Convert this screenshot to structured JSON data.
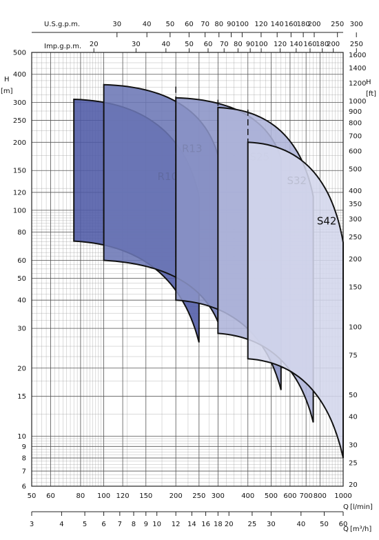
{
  "chart_data": {
    "type": "area",
    "scale": "log-log",
    "grid": true,
    "axes": {
      "left": {
        "label": "H",
        "unit": "[m]",
        "range": [
          6,
          500
        ],
        "ticks": [
          "500",
          "400",
          "300",
          "250",
          "200",
          "150",
          "120",
          "100",
          "80",
          "60",
          "50",
          "40",
          "30",
          "20",
          "15",
          "10",
          "9",
          "8",
          "7",
          "6"
        ]
      },
      "right": {
        "label": "H",
        "unit": "[ft]",
        "range": [
          20,
          1600
        ],
        "ticks": [
          "1600",
          "1400",
          "1200",
          "1000",
          "900",
          "800",
          "700",
          "600",
          "500",
          "400",
          "350",
          "300",
          "250",
          "200",
          "150",
          "100",
          "75",
          "50",
          "40",
          "30",
          "25",
          "20"
        ]
      },
      "bottom_primary": {
        "label": "Q",
        "unit": "[l/min]",
        "range": [
          50,
          1000
        ],
        "ticks": [
          "50",
          "60",
          "80",
          "100",
          "120",
          "150",
          "200",
          "250",
          "300",
          "400",
          "500",
          "600",
          "700",
          "800",
          "1000"
        ]
      },
      "bottom_secondary": {
        "label": "Q",
        "unit": "[m³/h]",
        "range": [
          3,
          60
        ],
        "ticks": [
          "3",
          "4",
          "5",
          "6",
          "7",
          "8",
          "9",
          "10",
          "12",
          "14",
          "16",
          "18",
          "20",
          "25",
          "30",
          "40",
          "50",
          "60"
        ]
      },
      "top_primary": {
        "label": "U.S.g.p.m.",
        "ticks": [
          "30",
          "40",
          "50",
          "60",
          "70",
          "80",
          "90",
          "100",
          "120",
          "140",
          "160",
          "180",
          "200",
          "250",
          "300"
        ]
      },
      "top_secondary": {
        "label": "Imp.g.p.m.",
        "ticks": [
          "20",
          "30",
          "40",
          "50",
          "60",
          "70",
          "80",
          "90",
          "100",
          "120",
          "140",
          "160",
          "180",
          "200",
          "250"
        ]
      }
    },
    "series": [
      {
        "name": "R10",
        "q_min": 75,
        "q_max": 250,
        "q_mid": 100,
        "h_top_start": 310,
        "h_top_end": 115,
        "h_bottom_start": 73,
        "h_bottom_end": 26,
        "color": "#4f5aa6"
      },
      {
        "name": "R13",
        "q_min": 100,
        "q_max": 300,
        "q_mid": 200,
        "h_top_start": 360,
        "h_top_end": 175,
        "h_bottom_start": 60,
        "h_bottom_end": 32,
        "color": "#6b76b5"
      },
      {
        "name": "S25",
        "q_min": 200,
        "q_max": 550,
        "q_mid": 300,
        "h_top_start": 315,
        "h_top_end": 170,
        "h_bottom_start": 40,
        "h_bottom_end": 16,
        "color": "#8a93c6"
      },
      {
        "name": "S32",
        "q_min": 300,
        "q_max": 750,
        "q_mid": 400,
        "h_top_start": 285,
        "h_top_end": 115,
        "h_bottom_start": 28.5,
        "h_bottom_end": 11.5,
        "color": "#aeb4d9"
      },
      {
        "name": "S42",
        "q_min": 400,
        "q_max": 1000,
        "q_mid": 400,
        "h_top_start": 200,
        "h_top_end": 72,
        "h_bottom_start": 22,
        "h_bottom_end": 8,
        "color": "#d3d6ec"
      }
    ]
  }
}
